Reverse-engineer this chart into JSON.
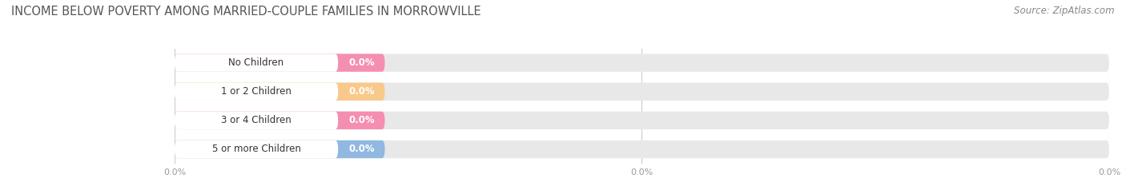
{
  "title": "INCOME BELOW POVERTY AMONG MARRIED-COUPLE FAMILIES IN MORROWVILLE",
  "source": "Source: ZipAtlas.com",
  "categories": [
    "No Children",
    "1 or 2 Children",
    "3 or 4 Children",
    "5 or more Children"
  ],
  "values": [
    0.0,
    0.0,
    0.0,
    0.0
  ],
  "bar_colors": [
    "#f48fb1",
    "#f8c98a",
    "#f48fb1",
    "#90b8e0"
  ],
  "track_color": "#e8e8e8",
  "background_color": "#ffffff",
  "title_fontsize": 10.5,
  "source_fontsize": 8.5,
  "label_fontsize": 8.5,
  "value_fontsize": 8.5,
  "gridline_color": "#cccccc",
  "title_color": "#555555",
  "source_color": "#888888",
  "tick_color": "#999999"
}
